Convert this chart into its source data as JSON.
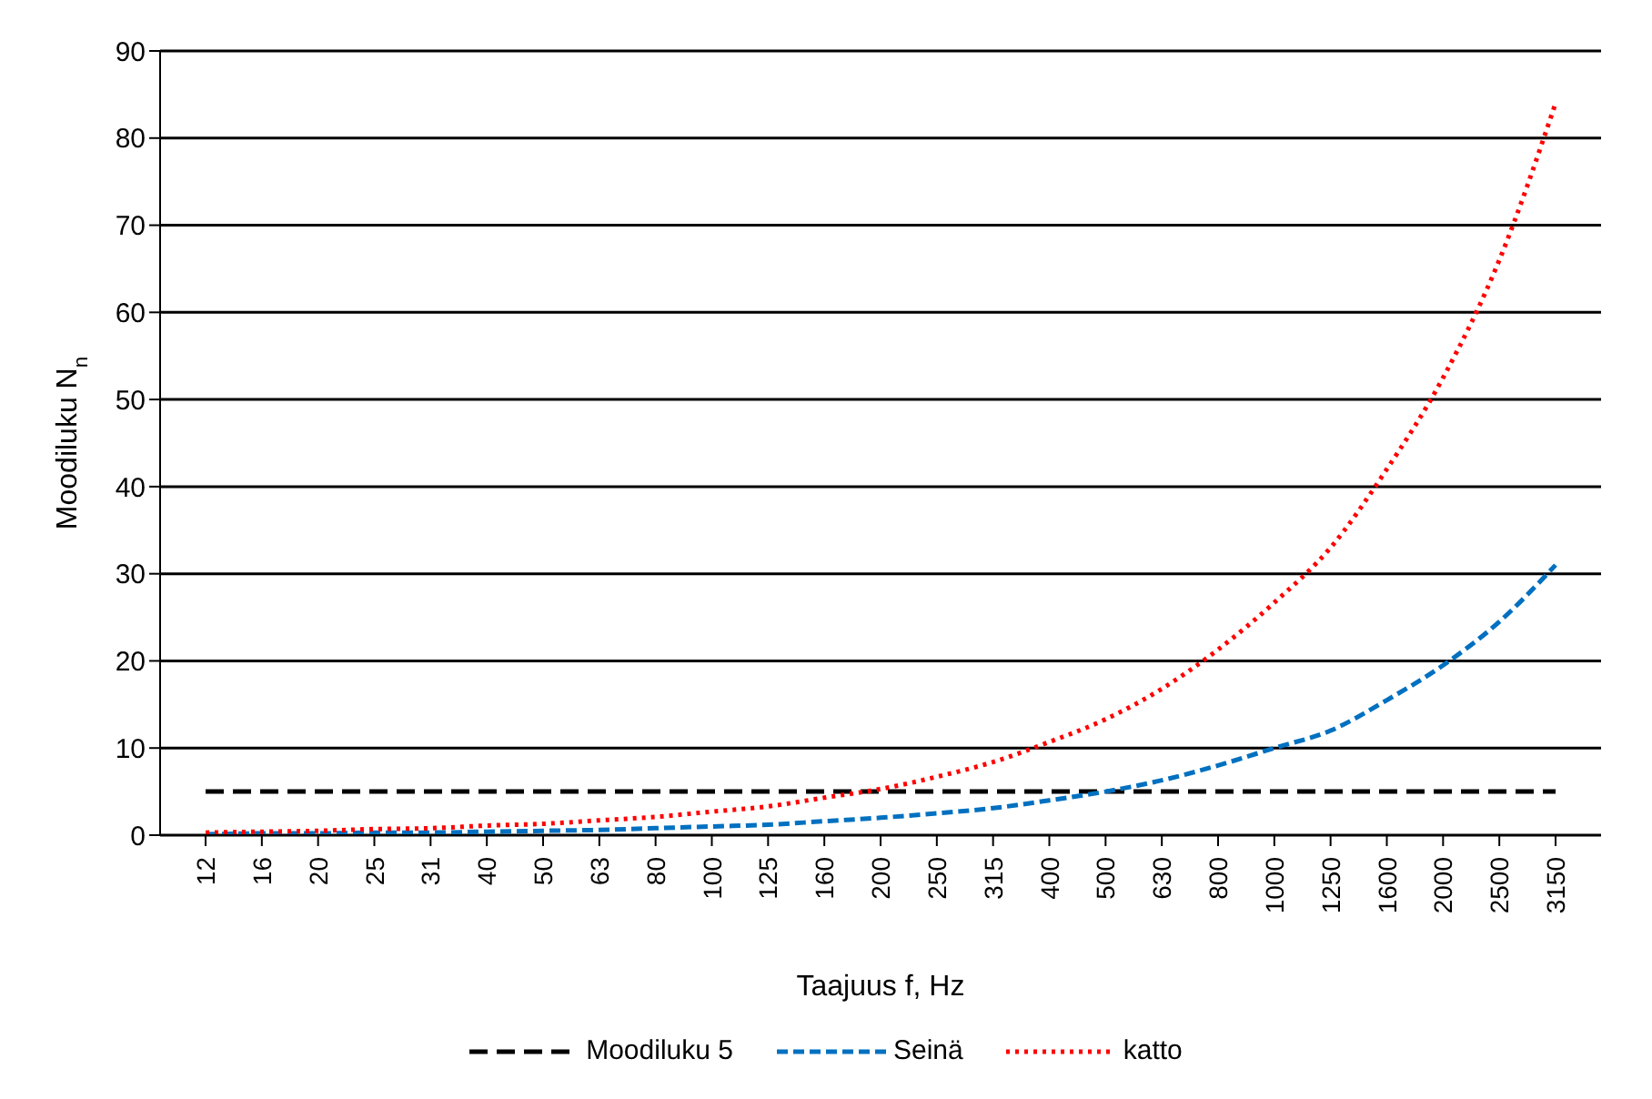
{
  "chart_data": {
    "type": "line",
    "xlabel": "Taajuus f, Hz",
    "ylabel": "Moodiluku N$_{n}$",
    "categories": [
      "12",
      "16",
      "20",
      "25",
      "31",
      "40",
      "50",
      "63",
      "80",
      "100",
      "125",
      "160",
      "200",
      "250",
      "315",
      "400",
      "500",
      "630",
      "800",
      "1000",
      "1250",
      "1600",
      "2000",
      "2500",
      "3150"
    ],
    "series": [
      {
        "name": "Moodiluku 5",
        "color": "#000000",
        "line_style": "dashed",
        "values": [
          5,
          5,
          5,
          5,
          5,
          5,
          5,
          5,
          5,
          5,
          5,
          5,
          5,
          5,
          5,
          5,
          5,
          5,
          5,
          5,
          5,
          5,
          5,
          5,
          5
        ]
      },
      {
        "name": "Seinä",
        "color": "#0070c0",
        "line_style": "dashed",
        "values": [
          0.1,
          0.2,
          0.2,
          0.3,
          0.3,
          0.4,
          0.5,
          0.6,
          0.8,
          1,
          1.2,
          1.6,
          2,
          2.5,
          3.1,
          4,
          5,
          6.3,
          8,
          10,
          12,
          15.5,
          19.5,
          24.5,
          31
        ]
      },
      {
        "name": "katto",
        "color": "#ff0000",
        "line_style": "dotted",
        "values": [
          0.3,
          0.4,
          0.5,
          0.7,
          0.8,
          1.1,
          1.3,
          1.7,
          2.1,
          2.7,
          3.3,
          4.3,
          5.3,
          6.7,
          8.4,
          10.7,
          13.3,
          16.8,
          21.3,
          26.7,
          33,
          42,
          52.5,
          66,
          84
        ]
      }
    ],
    "ylim": [
      0,
      90
    ],
    "yticks": [
      0,
      10,
      20,
      30,
      40,
      50,
      60,
      70,
      80,
      90
    ],
    "grid": "y",
    "legend": "bottom",
    "marker": "none"
  }
}
